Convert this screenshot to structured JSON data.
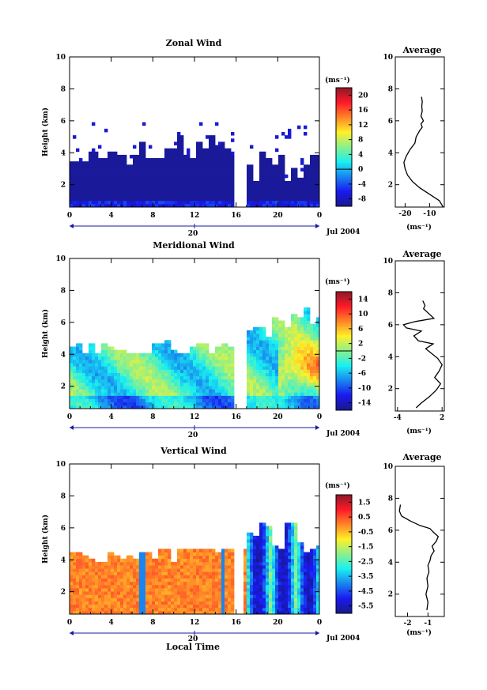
{
  "chart_data": [
    {
      "type": "heatmap",
      "title": "Zonal Wind",
      "ylabel": "Height (km)",
      "x_ticks": [
        "0",
        "4",
        "8",
        "12",
        "16",
        "20",
        "0"
      ],
      "y_ticks": [
        "2",
        "4",
        "6",
        "8",
        "10"
      ],
      "xlim": [
        0,
        24
      ],
      "ylim": [
        0.6,
        10
      ],
      "day_label": "20",
      "date_label": "Jul 2004",
      "colorbar": {
        "unit": "(ms⁻¹)",
        "ticks": [
          "20",
          "16",
          "12",
          "8",
          "4",
          "0",
          "-4",
          "-8"
        ],
        "range": [
          -10,
          22
        ]
      },
      "profile": {
        "title": "Average",
        "x_ticks": [
          "-20",
          "-10"
        ],
        "xlim": [
          -24,
          -4
        ],
        "y_ticks": [
          "2",
          "4",
          "6",
          "8",
          "10"
        ],
        "ylim": [
          0.6,
          10
        ],
        "unit": "(ms⁻¹)",
        "x": [
          -4.5,
          -6,
          -10,
          -14,
          -17,
          -19,
          -20,
          -20.5,
          -19.5,
          -18,
          -16,
          -15.5,
          -14,
          -13,
          -13.5,
          -12.5,
          -13.5,
          -13,
          -13.2,
          -13,
          -13.3
        ],
        "y": [
          0.6,
          1.0,
          1.4,
          1.8,
          2.2,
          2.6,
          3.0,
          3.4,
          3.8,
          4.2,
          4.6,
          5.0,
          5.4,
          5.6,
          5.8,
          6.0,
          6.3,
          6.6,
          6.9,
          7.2,
          7.5
        ]
      }
    },
    {
      "type": "heatmap",
      "title": "Meridional Wind",
      "ylabel": "Height (km)",
      "x_ticks": [
        "0",
        "4",
        "8",
        "12",
        "16",
        "20",
        "0"
      ],
      "y_ticks": [
        "2",
        "4",
        "6",
        "8",
        "10"
      ],
      "xlim": [
        0,
        24
      ],
      "ylim": [
        0.6,
        10
      ],
      "day_label": "20",
      "date_label": "Jul 2004",
      "colorbar": {
        "unit": "(ms⁻¹)",
        "ticks": [
          "14",
          "10",
          "6",
          "2",
          "-2",
          "-6",
          "-10",
          "-14"
        ],
        "range": [
          -16,
          16
        ]
      },
      "profile": {
        "title": "Average",
        "x_ticks": [
          "-4",
          "2"
        ],
        "xlim": [
          -4.3,
          2.3
        ],
        "y_ticks": [
          "2",
          "4",
          "6",
          "8",
          "10"
        ],
        "ylim": [
          0.6,
          10
        ],
        "unit": "(ms⁻¹)",
        "x": [
          -1.5,
          -0.8,
          0.3,
          1.2,
          1.8,
          1.0,
          1.6,
          2.0,
          1.4,
          0.6,
          -0.2,
          0.8,
          -1.2,
          -1.8,
          -0.8,
          -2.8,
          -3.2,
          -1.6,
          0.9,
          0.2,
          -0.5,
          -0.3,
          -0.6
        ],
        "y": [
          0.8,
          1.1,
          1.5,
          1.9,
          2.3,
          2.7,
          3.1,
          3.5,
          3.9,
          4.2,
          4.5,
          4.8,
          5.0,
          5.3,
          5.6,
          5.8,
          6.0,
          6.2,
          6.4,
          6.7,
          7.0,
          7.2,
          7.5
        ]
      }
    },
    {
      "type": "heatmap",
      "title": "Vertical Wind",
      "ylabel": "Height (km)",
      "xlabel": "Local Time",
      "x_ticks": [
        "0",
        "4",
        "8",
        "12",
        "16",
        "20",
        "0"
      ],
      "y_ticks": [
        "2",
        "4",
        "6",
        "8",
        "10"
      ],
      "xlim": [
        0,
        24
      ],
      "ylim": [
        0.6,
        10
      ],
      "day_label": "20",
      "date_label": "Jul 2004",
      "colorbar": {
        "unit": "(ms⁻¹)",
        "ticks": [
          "1.5",
          "0.5",
          "-0.5",
          "-1.5",
          "-2.5",
          "-3.5",
          "-4.5",
          "-5.5"
        ],
        "range": [
          -6,
          2
        ]
      },
      "profile": {
        "title": "Average",
        "x_ticks": [
          "-2",
          "-1"
        ],
        "xlim": [
          -2.6,
          -0.2
        ],
        "y_ticks": [
          "2",
          "4",
          "6",
          "8",
          "10"
        ],
        "ylim": [
          0.6,
          10
        ],
        "unit": "(ms⁻¹)",
        "x": [
          -1.05,
          -1.0,
          -1.1,
          -1.0,
          -1.05,
          -0.95,
          -1.0,
          -0.9,
          -0.85,
          -0.7,
          -0.8,
          -0.6,
          -0.5,
          -0.75,
          -0.9,
          -1.4,
          -1.9,
          -2.3,
          -2.4,
          -2.35
        ],
        "y": [
          1.0,
          1.5,
          2.0,
          2.5,
          3.0,
          3.4,
          3.8,
          4.1,
          4.4,
          4.7,
          5.0,
          5.3,
          5.6,
          5.9,
          6.1,
          6.3,
          6.6,
          6.9,
          7.2,
          7.6
        ]
      }
    }
  ]
}
